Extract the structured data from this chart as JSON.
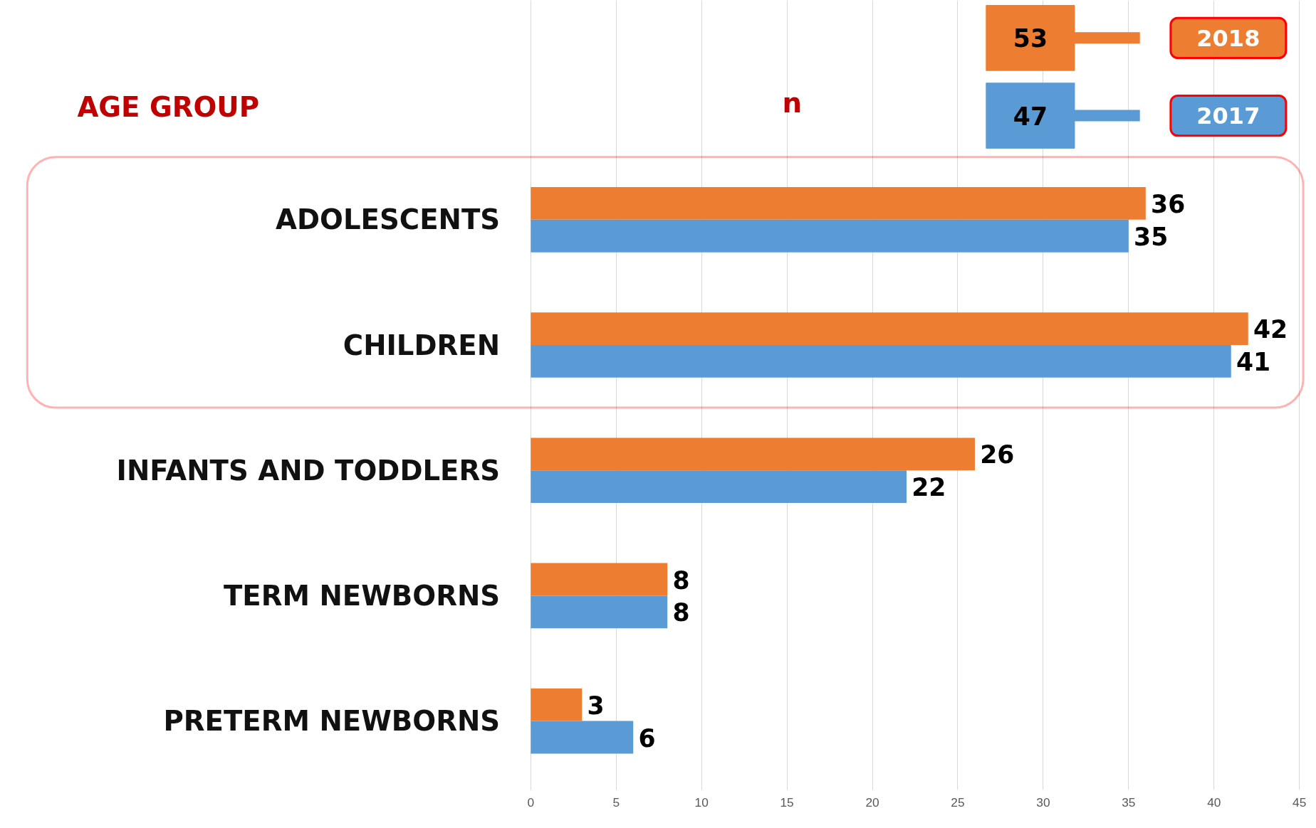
{
  "chart_data": {
    "type": "bar",
    "orientation": "horizontal",
    "ylabel": "AGE GROUP",
    "xlabel": "n",
    "categories": [
      "ADOLESCENTS",
      "CHILDREN",
      "INFANTS AND TODDLERS",
      "TERM NEWBORNS",
      "PRETERM NEWBORNS"
    ],
    "series": [
      {
        "name": "2018",
        "color": "#ed7d31",
        "values": [
          36,
          42,
          26,
          8,
          3
        ]
      },
      {
        "name": "2017",
        "color": "#5b9bd5",
        "values": [
          35,
          41,
          22,
          8,
          6
        ]
      }
    ],
    "annotations": [
      "53",
      "47"
    ],
    "xlim": [
      0,
      45
    ],
    "xticks": [
      0,
      5,
      10,
      15,
      20,
      25,
      30,
      35,
      40,
      45
    ],
    "data_labels": true,
    "grid": "x",
    "legend": "top right"
  }
}
